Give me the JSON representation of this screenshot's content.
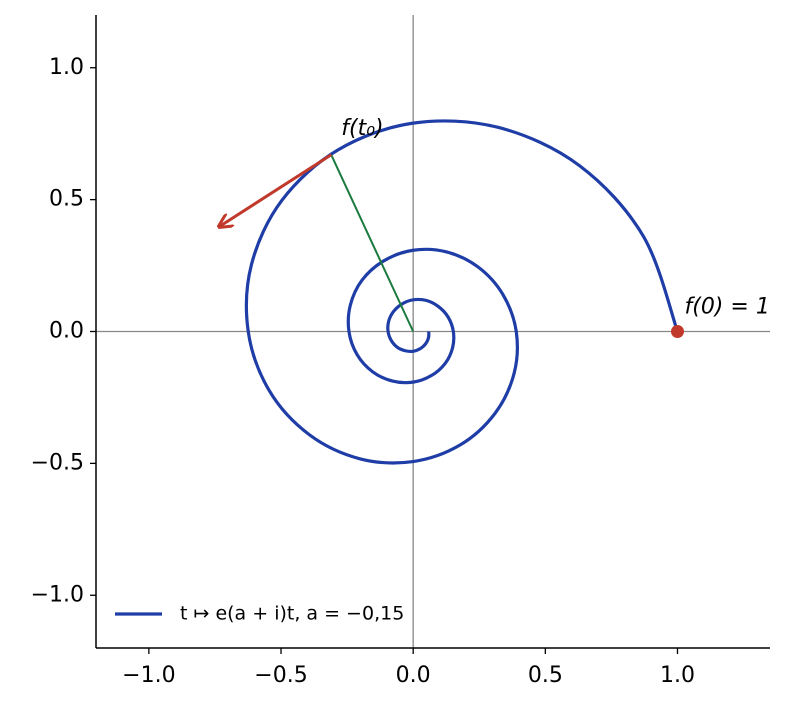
{
  "chart_data": {
    "type": "line",
    "series": [
      {
        "name": "t ↦ e(a + i)t, a = −0,15",
        "color": "#1f3da6",
        "x": [
          1,
          0.871,
          0.629,
          0.321,
          0,
          -0.285,
          -0.497,
          -0.612,
          -0.624,
          -0.544,
          -0.392,
          -0.2,
          0,
          0.178,
          0.31,
          0.382,
          0.39,
          0.339,
          0.245,
          0.125,
          0,
          -0.111,
          -0.194,
          -0.238,
          -0.243,
          -0.212,
          -0.153,
          -0.078,
          0,
          0.069,
          0.121,
          0.149,
          0.152,
          0.132,
          0.095,
          0.049,
          0,
          -0.043,
          -0.075,
          -0.093,
          -0.095,
          -0.083,
          -0.06,
          -0.03,
          0,
          0.027,
          0.047,
          0.058,
          0.059
        ],
        "y": [
          0,
          0.361,
          0.629,
          0.774,
          0.79,
          0.688,
          0.497,
          0.253,
          0,
          -0.225,
          -0.392,
          -0.483,
          -0.493,
          -0.43,
          -0.31,
          -0.158,
          0,
          0.141,
          0.245,
          0.302,
          0.308,
          0.268,
          0.194,
          0.099,
          0,
          -0.088,
          -0.153,
          -0.188,
          -0.192,
          -0.167,
          -0.121,
          -0.062,
          0,
          0.055,
          0.095,
          0.118,
          0.12,
          0.104,
          0.075,
          0.038,
          0,
          -0.034,
          -0.06,
          -0.073,
          -0.075,
          -0.065,
          -0.047,
          -0.024,
          0
        ]
      }
    ],
    "xlim": [
      -1.2,
      1.35
    ],
    "ylim": [
      -1.2,
      1.2
    ],
    "xticks": [
      {
        "value": -1,
        "label": "−1.0"
      },
      {
        "value": -0.5,
        "label": "−0.5"
      },
      {
        "value": 0,
        "label": "0.0"
      },
      {
        "value": 0.5,
        "label": "0.5"
      },
      {
        "value": 1,
        "label": "1.0"
      }
    ],
    "yticks": [
      {
        "value": -1,
        "label": "−1.0"
      },
      {
        "value": -0.5,
        "label": "−0.5"
      },
      {
        "value": 0,
        "label": "0.0"
      },
      {
        "value": 0.5,
        "label": "0.5"
      },
      {
        "value": 1,
        "label": "1.0"
      }
    ],
    "legend": "lower left",
    "point": {
      "label": "f(0) = 1",
      "x": 1,
      "y": 0,
      "color": "#c0392b"
    },
    "radius": {
      "label": "f(t₀)",
      "x": [
        0,
        -0.31
      ],
      "y": [
        0,
        0.67
      ],
      "color": "#1b7a3e"
    },
    "tangent": {
      "x": [
        -0.31,
        -0.73
      ],
      "y": [
        0.67,
        0.4
      ],
      "color": "#c0392b"
    }
  }
}
